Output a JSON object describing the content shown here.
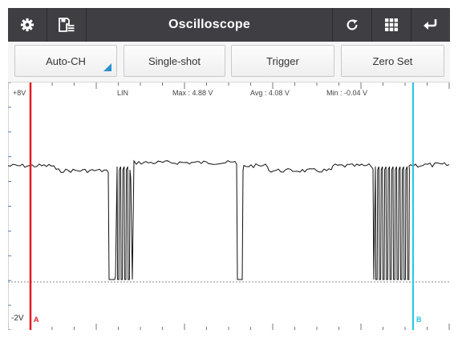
{
  "window": {
    "title": "Oscilloscope",
    "icons": {
      "settings": "gear-icon",
      "save": "save-list-icon",
      "refresh": "refresh-icon",
      "grid": "grid-icon",
      "back": "return-icon"
    }
  },
  "toolbar": {
    "auto_ch_label": "Auto-CH",
    "single_shot_label": "Single-shot",
    "trigger_label": "Trigger",
    "zero_set_label": "Zero Set"
  },
  "scope": {
    "top_scale": "+8V",
    "bottom_scale": "-2V",
    "mode": "LIN",
    "max": "Max : 4.88 V",
    "avg": "Avg : 4.08 V",
    "min": "Min : -0.04 V",
    "cursor_a": "A",
    "cursor_b": "B",
    "colors": {
      "trace": "#111111",
      "cursor_a": "#e21b1b",
      "cursor_b": "#22c7e6",
      "header_bg": "#3e3e43"
    }
  }
}
